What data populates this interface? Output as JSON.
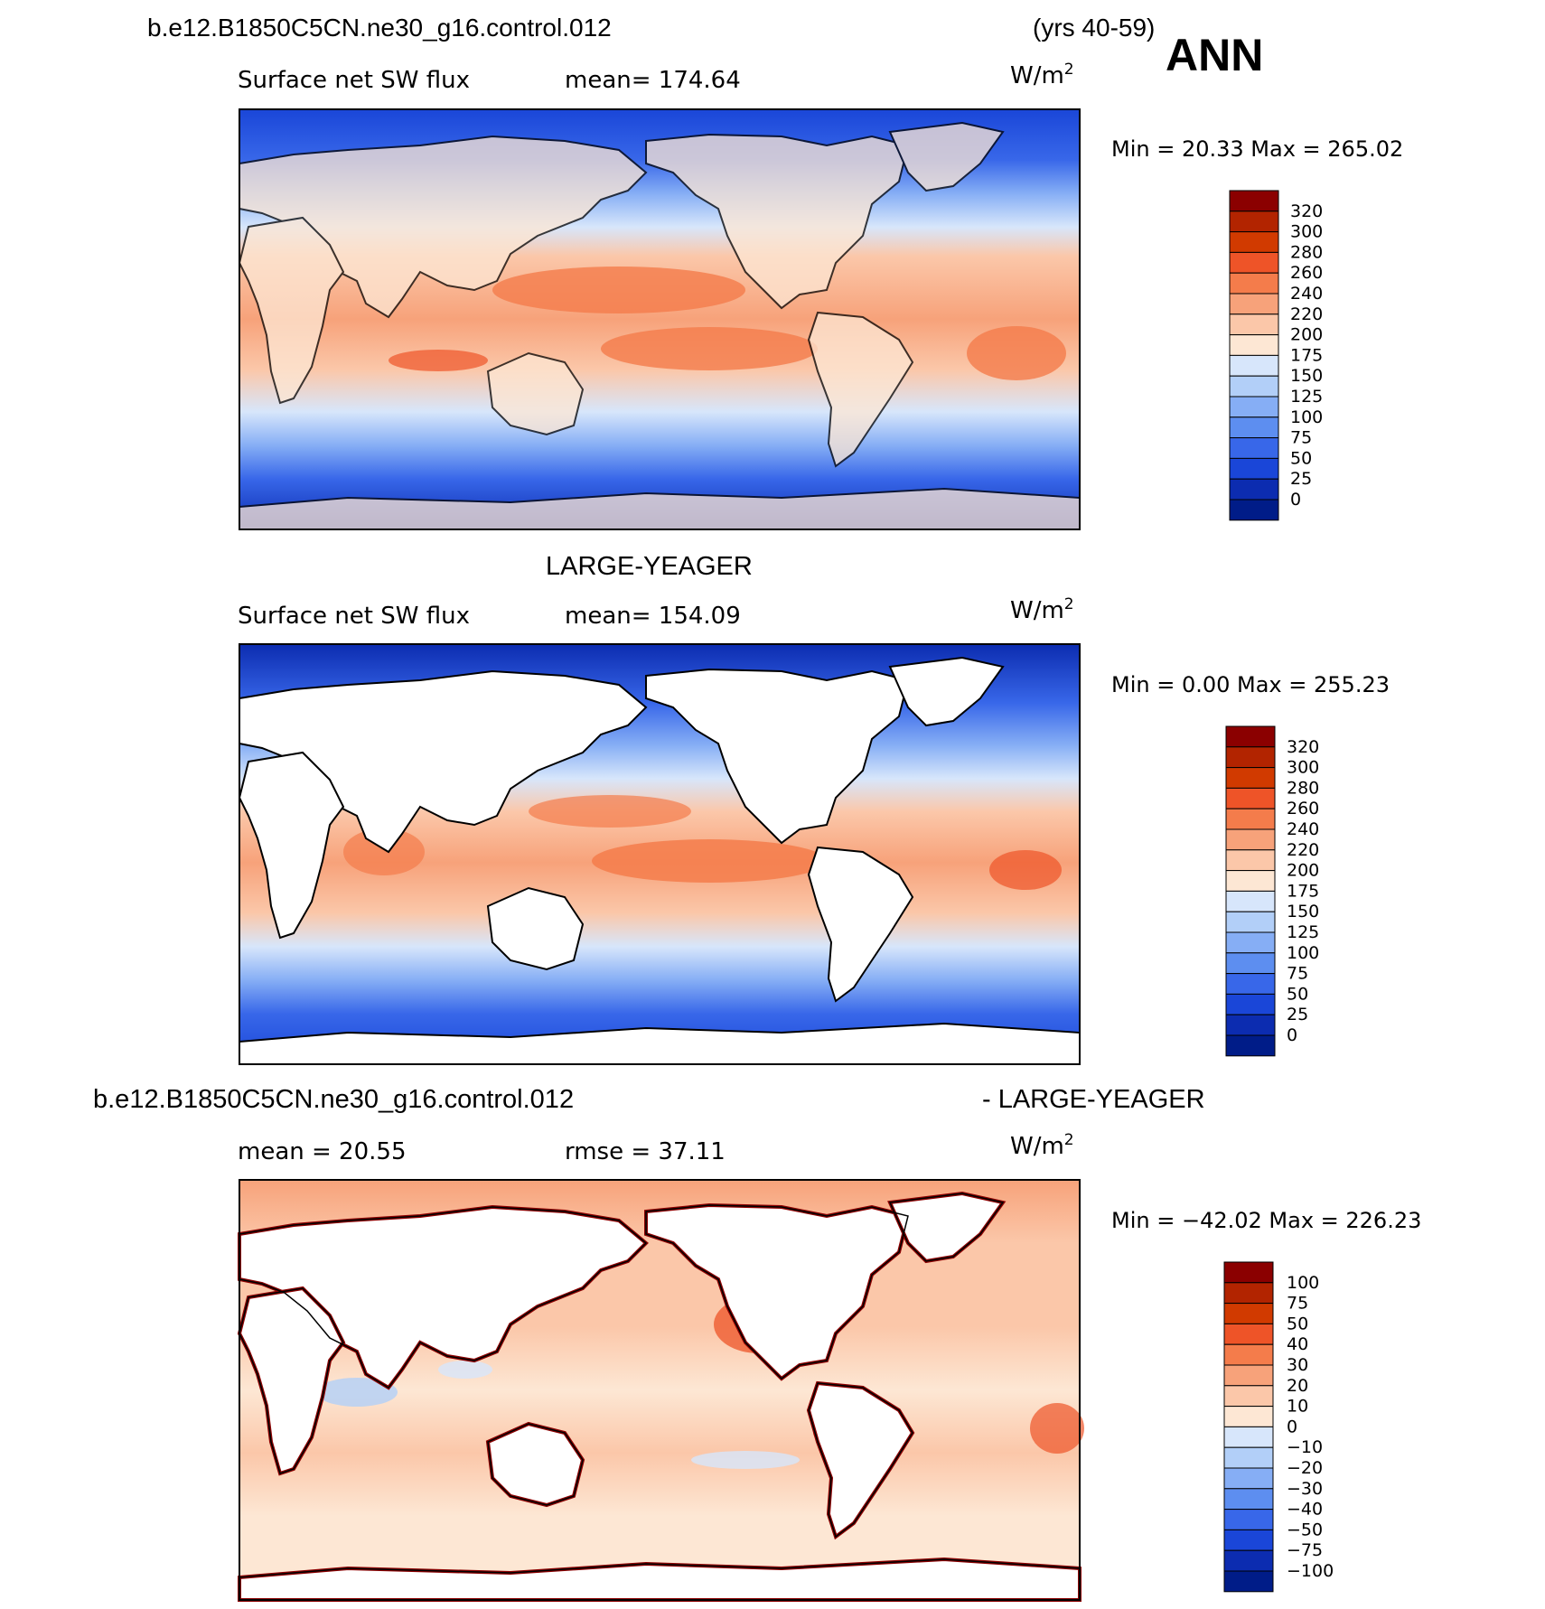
{
  "header": {
    "case_name": "b.e12.B1850C5CN.ne30_g16.control.012",
    "years": "(yrs 40-59)",
    "season": "ANN"
  },
  "panels": [
    {
      "id": "model",
      "title": "",
      "variable": "Surface net SW flux",
      "stat_text": "mean=  174.64",
      "units": "W/m",
      "units_exp": "2",
      "minmax": "Min =   20.33 Max = 265.02",
      "colorbar_labels": [
        "320",
        "300",
        "280",
        "260",
        "240",
        "220",
        "200",
        "175",
        "150",
        "125",
        "100",
        "75",
        "50",
        "25",
        "0"
      ]
    },
    {
      "id": "obs",
      "title": "LARGE-YEAGER",
      "variable": "Surface net SW flux",
      "stat_text": "mean=  154.09",
      "units": "W/m",
      "units_exp": "2",
      "minmax": "Min =    0.00 Max = 255.23",
      "colorbar_labels": [
        "320",
        "300",
        "280",
        "260",
        "240",
        "220",
        "200",
        "175",
        "150",
        "125",
        "100",
        "75",
        "50",
        "25",
        "0"
      ]
    },
    {
      "id": "diff",
      "title_left": "b.e12.B1850C5CN.ne30_g16.control.012",
      "title_right": "- LARGE-YEAGER",
      "mean_text": "mean =   20.55",
      "rmse_text": "rmse =   37.11",
      "units": "W/m",
      "units_exp": "2",
      "minmax": "Min = −42.02 Max = 226.23",
      "colorbar_labels": [
        "100",
        "75",
        "50",
        "40",
        "30",
        "20",
        "10",
        "0",
        "−10",
        "−20",
        "−30",
        "−40",
        "−50",
        "−75",
        "−100"
      ]
    }
  ],
  "colors": {
    "sw_scale": [
      "#8b0000",
      "#b22400",
      "#d13a00",
      "#ee5428",
      "#f47c4b",
      "#f7a27a",
      "#fbc7a9",
      "#fde7d4",
      "#d7e6fb",
      "#b2cff8",
      "#86aef5",
      "#5d8ef0",
      "#3867e9",
      "#1a46d8",
      "#0c2cb0",
      "#001c88"
    ],
    "diff_scale": [
      "#8b0000",
      "#b22400",
      "#d13a00",
      "#ee5428",
      "#f47c4b",
      "#f7a27a",
      "#fbc7a9",
      "#fde7d4",
      "#d7e6fb",
      "#b2cff8",
      "#86aef5",
      "#5d8ef0",
      "#3867e9",
      "#1a46d8",
      "#0c2cb0",
      "#001c88"
    ]
  }
}
